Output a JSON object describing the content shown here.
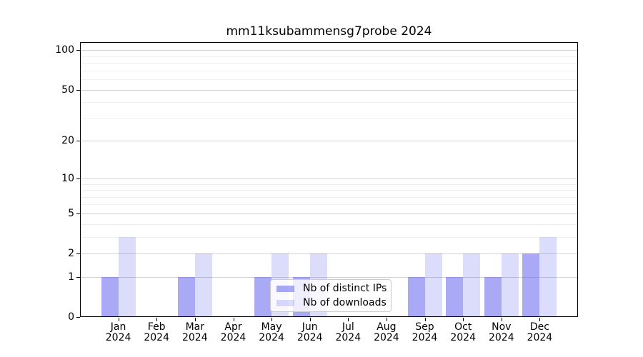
{
  "chart_data": {
    "type": "bar",
    "title": "mm11ksubammensg7probe 2024",
    "categories": [
      "Jan",
      "Feb",
      "Mar",
      "Apr",
      "May",
      "Jun",
      "Jul",
      "Aug",
      "Sep",
      "Oct",
      "Nov",
      "Dec"
    ],
    "category_year": "2024",
    "series": [
      {
        "name": "Nb of distinct IPs",
        "values": [
          1,
          0,
          1,
          0,
          1,
          1,
          0,
          0,
          1,
          1,
          1,
          2
        ],
        "color": "#5a5aee",
        "opacity": 0.52
      },
      {
        "name": "Nb of downloads",
        "values": [
          3,
          0,
          2,
          0,
          2,
          2,
          0,
          0,
          2,
          2,
          2,
          3
        ],
        "color": "#5a5aee",
        "opacity": 0.21
      }
    ],
    "xlabel": "",
    "ylabel": "",
    "yscale": "log1p",
    "ylim": [
      0,
      115
    ],
    "yticks": [
      0,
      1,
      2,
      5,
      10,
      20,
      50,
      100
    ],
    "minor_yticks": [
      3,
      4,
      6,
      7,
      8,
      9,
      30,
      40,
      60,
      70,
      80,
      90
    ],
    "grid": "horizontal",
    "legend_position": "inside lower center",
    "colors": {
      "background": "#ffffff",
      "major_grid": "#d2d2d2",
      "minor_grid": "#efefef",
      "spine": "#000000",
      "bar_base": "#5a5aee"
    }
  }
}
